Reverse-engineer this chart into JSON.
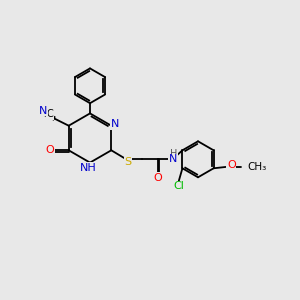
{
  "background_color": "#e8e8e8",
  "atom_colors": {
    "N": "#0000cc",
    "O": "#ff0000",
    "S": "#ccaa00",
    "Cl": "#00bb00",
    "C": "#000000",
    "H": "#555555"
  },
  "font_size": 8.0,
  "lw": 1.3
}
